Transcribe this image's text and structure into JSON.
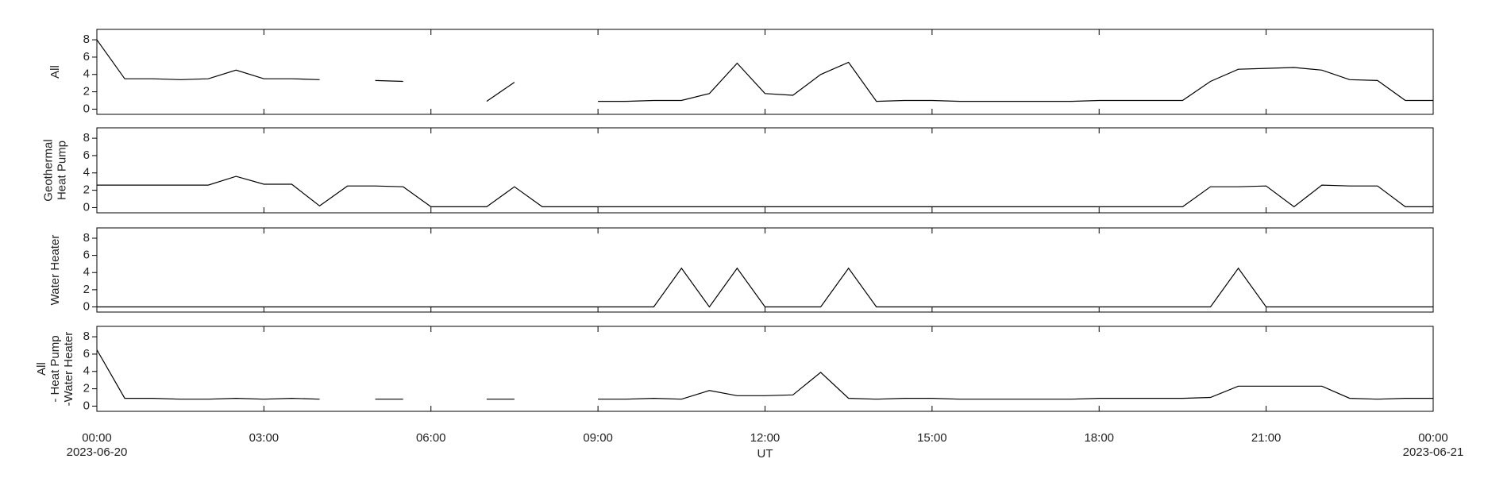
{
  "chart_data": [
    {
      "type": "line",
      "ylabel": [
        "All"
      ],
      "color": "#000000",
      "x": [
        "2023-06-20 00:00",
        "2023-06-20 00:30",
        "2023-06-20 01:00",
        "2023-06-20 01:30",
        "2023-06-20 02:00",
        "2023-06-20 02:30",
        "2023-06-20 03:00",
        "2023-06-20 03:30",
        "2023-06-20 04:00",
        "2023-06-20 04:30",
        "2023-06-20 05:00",
        "2023-06-20 05:30",
        "2023-06-20 06:00",
        "2023-06-20 06:30",
        "2023-06-20 07:00",
        "2023-06-20 07:30",
        "2023-06-20 08:00",
        "2023-06-20 08:30",
        "2023-06-20 09:00",
        "2023-06-20 09:30",
        "2023-06-20 10:00",
        "2023-06-20 10:30",
        "2023-06-20 11:00",
        "2023-06-20 11:30",
        "2023-06-20 12:00",
        "2023-06-20 12:30",
        "2023-06-20 13:00",
        "2023-06-20 13:30",
        "2023-06-20 14:00",
        "2023-06-20 14:30",
        "2023-06-20 15:00",
        "2023-06-20 15:30",
        "2023-06-20 16:00",
        "2023-06-20 16:30",
        "2023-06-20 17:00",
        "2023-06-20 17:30",
        "2023-06-20 18:00",
        "2023-06-20 18:30",
        "2023-06-20 19:00",
        "2023-06-20 19:30",
        "2023-06-20 20:00",
        "2023-06-20 20:30",
        "2023-06-20 21:00",
        "2023-06-20 21:30",
        "2023-06-20 22:00",
        "2023-06-20 22:30",
        "2023-06-20 23:00",
        "2023-06-20 23:30",
        "2023-06-21 00:00"
      ],
      "values": [
        8,
        3.5,
        3.5,
        3.4,
        3.5,
        4.5,
        3.5,
        3.5,
        3.4,
        null,
        3.3,
        3.2,
        null,
        null,
        0.9,
        3.1,
        null,
        null,
        0.9,
        0.9,
        1.0,
        1.0,
        1.8,
        5.3,
        1.8,
        1.6,
        4.0,
        5.4,
        0.9,
        1.0,
        1.0,
        0.9,
        0.9,
        0.9,
        0.9,
        0.9,
        1.0,
        1.0,
        1.0,
        1.0,
        3.2,
        4.6,
        4.7,
        4.8,
        4.5,
        3.4,
        3.3,
        1.0,
        1.0
      ],
      "xlim": [
        "2023-06-20 00:00",
        "2023-06-21 00:00"
      ],
      "ylim": [
        -0.6,
        9.2
      ],
      "yticks": [
        0,
        2,
        4,
        6,
        8
      ]
    },
    {
      "type": "line",
      "ylabel": [
        "Geothermal",
        "Heat Pump"
      ],
      "color": "#000000",
      "x": [
        "2023-06-20 00:00",
        "2023-06-20 00:30",
        "2023-06-20 01:00",
        "2023-06-20 01:30",
        "2023-06-20 02:00",
        "2023-06-20 02:30",
        "2023-06-20 03:00",
        "2023-06-20 03:30",
        "2023-06-20 04:00",
        "2023-06-20 04:30",
        "2023-06-20 05:00",
        "2023-06-20 05:30",
        "2023-06-20 06:00",
        "2023-06-20 06:30",
        "2023-06-20 07:00",
        "2023-06-20 07:30",
        "2023-06-20 08:00",
        "2023-06-20 08:30",
        "2023-06-20 09:00",
        "2023-06-20 09:30",
        "2023-06-20 10:00",
        "2023-06-20 10:30",
        "2023-06-20 11:00",
        "2023-06-20 11:30",
        "2023-06-20 12:00",
        "2023-06-20 12:30",
        "2023-06-20 13:00",
        "2023-06-20 13:30",
        "2023-06-20 14:00",
        "2023-06-20 14:30",
        "2023-06-20 15:00",
        "2023-06-20 15:30",
        "2023-06-20 16:00",
        "2023-06-20 16:30",
        "2023-06-20 17:00",
        "2023-06-20 17:30",
        "2023-06-20 18:00",
        "2023-06-20 18:30",
        "2023-06-20 19:00",
        "2023-06-20 19:30",
        "2023-06-20 20:00",
        "2023-06-20 20:30",
        "2023-06-20 21:00",
        "2023-06-20 21:30",
        "2023-06-20 22:00",
        "2023-06-20 22:30",
        "2023-06-20 23:00",
        "2023-06-20 23:30",
        "2023-06-21 00:00"
      ],
      "values": [
        2.6,
        2.6,
        2.6,
        2.6,
        2.6,
        3.6,
        2.7,
        2.7,
        0.2,
        2.5,
        2.5,
        2.4,
        0.1,
        0.1,
        0.1,
        2.4,
        0.1,
        0.1,
        0.1,
        0.1,
        0.1,
        0.1,
        0.1,
        0.1,
        0.1,
        0.1,
        0.1,
        0.1,
        0.1,
        0.1,
        0.1,
        0.1,
        0.1,
        0.1,
        0.1,
        0.1,
        0.1,
        0.1,
        0.1,
        0.1,
        2.4,
        2.4,
        2.5,
        0.1,
        2.6,
        2.5,
        2.5,
        0.1,
        0.1
      ],
      "xlim": [
        "2023-06-20 00:00",
        "2023-06-21 00:00"
      ],
      "ylim": [
        -0.6,
        9.2
      ],
      "yticks": [
        0,
        2,
        4,
        6,
        8
      ]
    },
    {
      "type": "line",
      "ylabel": [
        "Water Heater"
      ],
      "color": "#000000",
      "x": [
        "2023-06-20 00:00",
        "2023-06-20 00:30",
        "2023-06-20 01:00",
        "2023-06-20 01:30",
        "2023-06-20 02:00",
        "2023-06-20 02:30",
        "2023-06-20 03:00",
        "2023-06-20 03:30",
        "2023-06-20 04:00",
        "2023-06-20 04:30",
        "2023-06-20 05:00",
        "2023-06-20 05:30",
        "2023-06-20 06:00",
        "2023-06-20 06:30",
        "2023-06-20 07:00",
        "2023-06-20 07:30",
        "2023-06-20 08:00",
        "2023-06-20 08:30",
        "2023-06-20 09:00",
        "2023-06-20 09:30",
        "2023-06-20 10:00",
        "2023-06-20 10:30",
        "2023-06-20 11:00",
        "2023-06-20 11:30",
        "2023-06-20 12:00",
        "2023-06-20 12:30",
        "2023-06-20 13:00",
        "2023-06-20 13:30",
        "2023-06-20 14:00",
        "2023-06-20 14:30",
        "2023-06-20 15:00",
        "2023-06-20 15:30",
        "2023-06-20 16:00",
        "2023-06-20 16:30",
        "2023-06-20 17:00",
        "2023-06-20 17:30",
        "2023-06-20 18:00",
        "2023-06-20 18:30",
        "2023-06-20 19:00",
        "2023-06-20 19:30",
        "2023-06-20 20:00",
        "2023-06-20 20:30",
        "2023-06-20 21:00",
        "2023-06-20 21:30",
        "2023-06-20 22:00",
        "2023-06-20 22:30",
        "2023-06-20 23:00",
        "2023-06-20 23:30",
        "2023-06-21 00:00"
      ],
      "values": [
        0,
        0,
        0,
        0,
        0,
        0,
        0,
        0,
        0,
        0,
        0,
        0,
        0,
        0,
        0,
        0,
        0,
        0,
        0,
        0,
        0,
        4.5,
        0,
        4.5,
        0,
        0,
        0,
        4.5,
        0,
        0,
        0,
        0,
        0,
        0,
        0,
        0,
        0,
        0,
        0,
        0,
        0,
        4.5,
        0,
        0,
        0,
        0,
        0,
        0,
        0
      ],
      "xlim": [
        "2023-06-20 00:00",
        "2023-06-21 00:00"
      ],
      "ylim": [
        -0.6,
        9.2
      ],
      "yticks": [
        0,
        2,
        4,
        6,
        8
      ]
    },
    {
      "type": "line",
      "ylabel": [
        "All",
        "- Heat Pump",
        "-Water Heater"
      ],
      "color": "#000000",
      "xlabel": "UT",
      "x": [
        "2023-06-20 00:00",
        "2023-06-20 00:30",
        "2023-06-20 01:00",
        "2023-06-20 01:30",
        "2023-06-20 02:00",
        "2023-06-20 02:30",
        "2023-06-20 03:00",
        "2023-06-20 03:30",
        "2023-06-20 04:00",
        "2023-06-20 04:30",
        "2023-06-20 05:00",
        "2023-06-20 05:30",
        "2023-06-20 06:00",
        "2023-06-20 06:30",
        "2023-06-20 07:00",
        "2023-06-20 07:30",
        "2023-06-20 08:00",
        "2023-06-20 08:30",
        "2023-06-20 09:00",
        "2023-06-20 09:30",
        "2023-06-20 10:00",
        "2023-06-20 10:30",
        "2023-06-20 11:00",
        "2023-06-20 11:30",
        "2023-06-20 12:00",
        "2023-06-20 12:30",
        "2023-06-20 13:00",
        "2023-06-20 13:30",
        "2023-06-20 14:00",
        "2023-06-20 14:30",
        "2023-06-20 15:00",
        "2023-06-20 15:30",
        "2023-06-20 16:00",
        "2023-06-20 16:30",
        "2023-06-20 17:00",
        "2023-06-20 17:30",
        "2023-06-20 18:00",
        "2023-06-20 18:30",
        "2023-06-20 19:00",
        "2023-06-20 19:30",
        "2023-06-20 20:00",
        "2023-06-20 20:30",
        "2023-06-20 21:00",
        "2023-06-20 21:30",
        "2023-06-20 22:00",
        "2023-06-20 22:30",
        "2023-06-20 23:00",
        "2023-06-20 23:30",
        "2023-06-21 00:00"
      ],
      "values": [
        6.5,
        0.9,
        0.9,
        0.8,
        0.8,
        0.9,
        0.8,
        0.9,
        0.8,
        null,
        0.8,
        0.8,
        null,
        null,
        0.8,
        0.8,
        null,
        null,
        0.8,
        0.8,
        0.9,
        0.8,
        1.8,
        1.2,
        1.2,
        1.3,
        3.9,
        0.9,
        0.8,
        0.9,
        0.9,
        0.8,
        0.8,
        0.8,
        0.8,
        0.8,
        0.9,
        0.9,
        0.9,
        0.9,
        1.0,
        2.3,
        2.3,
        2.3,
        2.3,
        0.9,
        0.8,
        0.9,
        0.9
      ],
      "xlim": [
        "2023-06-20 00:00",
        "2023-06-21 00:00"
      ],
      "ylim": [
        -0.6,
        9.2
      ],
      "yticks": [
        0,
        2,
        4,
        6,
        8
      ],
      "xticks": [
        {
          "value": "2023-06-20 00:00",
          "label": "00:00",
          "date": "2023-06-20"
        },
        {
          "value": "2023-06-20 03:00",
          "label": "03:00"
        },
        {
          "value": "2023-06-20 06:00",
          "label": "06:00"
        },
        {
          "value": "2023-06-20 09:00",
          "label": "09:00"
        },
        {
          "value": "2023-06-20 12:00",
          "label": "12:00"
        },
        {
          "value": "2023-06-20 15:00",
          "label": "15:00"
        },
        {
          "value": "2023-06-20 18:00",
          "label": "18:00"
        },
        {
          "value": "2023-06-20 21:00",
          "label": "21:00"
        },
        {
          "value": "2023-06-21 00:00",
          "label": "00:00",
          "date": "2023-06-21"
        }
      ]
    }
  ]
}
